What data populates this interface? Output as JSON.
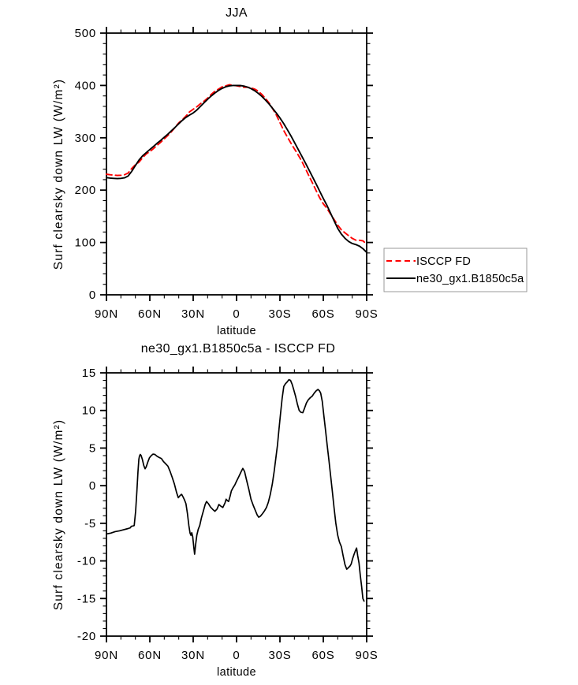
{
  "figure": {
    "background": "#ffffff",
    "line_colors": {
      "isccp": "#ff0000",
      "model": "#000000",
      "difference": "#000000"
    },
    "legend_border_color": "#999999"
  },
  "chart_data": [
    {
      "type": "line",
      "title": "JJA",
      "xlabel": "latitude",
      "ylabel": "Surf clearsky down LW (W/m²)",
      "xlim": [
        90,
        -90
      ],
      "x_tick_values": [
        90,
        60,
        30,
        0,
        -30,
        -60,
        -90
      ],
      "x_tick_labels": [
        "90N",
        "60N",
        "30N",
        "0",
        "30S",
        "60S",
        "90S"
      ],
      "x_minor_step": 10,
      "ylim": [
        0,
        500
      ],
      "y_tick_values": [
        0,
        100,
        200,
        300,
        400,
        500
      ],
      "y_tick_labels": [
        "0",
        "100",
        "200",
        "300",
        "400",
        "500"
      ],
      "y_minor_step": 20,
      "grid": false,
      "legend": {
        "position": "outside-right",
        "entries": [
          {
            "label": "ISCCP FD",
            "color": "#ff0000",
            "dashed": true
          },
          {
            "label": "ne30_gx1.B1850c5a",
            "color": "#000000",
            "dashed": false
          }
        ]
      },
      "series": [
        {
          "name": "ISCCP FD",
          "color": "#ff0000",
          "style": "dashed",
          "lats": [
            90,
            87.5,
            85,
            82.5,
            80,
            77.5,
            75,
            72.5,
            70,
            67.5,
            65,
            62.5,
            60,
            57.5,
            55,
            52.5,
            50,
            47.5,
            45,
            42.5,
            40,
            37.5,
            35,
            32.5,
            30,
            27.5,
            25,
            22.5,
            20,
            17.5,
            15,
            12.5,
            10,
            7.5,
            5,
            2.5,
            0,
            -2.5,
            -5,
            -7.5,
            -10,
            -12.5,
            -15,
            -17.5,
            -20,
            -22.5,
            -25,
            -27.5,
            -30,
            -32.5,
            -35,
            -37.5,
            -40,
            -42.5,
            -45,
            -47.5,
            -50,
            -52.5,
            -55,
            -57.5,
            -60,
            -62.5,
            -65,
            -67.5,
            -70,
            -72.5,
            -75,
            -77.5,
            -80,
            -82.5,
            -85,
            -87.5,
            -90
          ],
          "values": [
            230.4,
            229.3,
            228.7,
            228,
            228.5,
            229.3,
            232.7,
            241.4,
            248.5,
            253.6,
            261.8,
            269.1,
            273.7,
            279.3,
            285.5,
            291.4,
            297.9,
            304.5,
            311.8,
            320,
            328.6,
            334.8,
            341.4,
            349.5,
            354.5,
            359.2,
            365,
            370.1,
            375.7,
            383,
            388.9,
            393.1,
            397.3,
            399.3,
            401.4,
            400.3,
            399.4,
            398.1,
            396.5,
            396.5,
            395.7,
            393,
            389.2,
            382.8,
            375.1,
            366.4,
            355.5,
            343.5,
            329,
            314.5,
            302.1,
            290.1,
            279,
            267.7,
            255.8,
            241.8,
            227.4,
            213.5,
            199.4,
            185.4,
            174,
            165.2,
            154.2,
            143.5,
            133.2,
            124.1,
            118.3,
            112.9,
            107.9,
            104.4,
            104.2,
            103,
            96.4
          ]
        },
        {
          "name": "ne30_gx1.B1850c5a",
          "color": "#000000",
          "style": "solid",
          "lats": [
            90,
            87.5,
            85,
            82.5,
            80,
            77.5,
            75,
            72.5,
            70,
            67.5,
            65,
            62.5,
            60,
            57.5,
            55,
            52.5,
            50,
            47.5,
            45,
            42.5,
            40,
            37.5,
            35,
            32.5,
            30,
            27.5,
            25,
            22.5,
            20,
            17.5,
            15,
            12.5,
            10,
            7.5,
            5,
            2.5,
            0,
            -2.5,
            -5,
            -7.5,
            -10,
            -12.5,
            -15,
            -17.5,
            -20,
            -22.5,
            -25,
            -27.5,
            -30,
            -32.5,
            -35,
            -37.5,
            -40,
            -42.5,
            -45,
            -47.5,
            -50,
            -52.5,
            -55,
            -57.5,
            -60,
            -62.5,
            -65,
            -67.5,
            -70,
            -72.5,
            -75,
            -77.5,
            -80,
            -82.5,
            -85,
            -87.5,
            -90
          ],
          "values": [
            224,
            223,
            222.5,
            222,
            222.5,
            223.5,
            227,
            236,
            247,
            257.5,
            265.5,
            271.5,
            277.5,
            283.5,
            289.5,
            295,
            301,
            307,
            313.5,
            320,
            327,
            333.5,
            339,
            343.5,
            347.5,
            353,
            360,
            367,
            373.5,
            380,
            385.5,
            390.5,
            394.5,
            397.5,
            399.3,
            400,
            400,
            399.8,
            398.8,
            396.8,
            394,
            390,
            385,
            379,
            372,
            364.5,
            356,
            347.5,
            338,
            327.5,
            316,
            304,
            291.5,
            278.5,
            265.5,
            252.5,
            239,
            225.5,
            212,
            198,
            184,
            171,
            156,
            141,
            127,
            116,
            108,
            102,
            98,
            96,
            93,
            88,
            81
          ]
        }
      ]
    },
    {
      "type": "line",
      "title": "ne30_gx1.B1850c5a - ISCCP FD",
      "xlabel": "latitude",
      "ylabel": "Surf clearsky down LW (W/m²)",
      "xlim": [
        90,
        -90
      ],
      "x_tick_values": [
        90,
        60,
        30,
        0,
        -30,
        -60,
        -90
      ],
      "x_tick_labels": [
        "90N",
        "60N",
        "30N",
        "0",
        "30S",
        "60S",
        "90S"
      ],
      "x_minor_step": 10,
      "ylim": [
        -20,
        15
      ],
      "y_tick_values": [
        -20,
        -15,
        -10,
        -5,
        0,
        5,
        10,
        15
      ],
      "y_tick_labels": [
        "-20",
        "-15",
        "-10",
        "-5",
        "0",
        "5",
        "10",
        "15"
      ],
      "y_minor_step": 1,
      "grid": false,
      "legend": null,
      "series": [
        {
          "name": "ne30_gx1.B1850c5a - ISCCP FD",
          "color": "#000000",
          "style": "solid",
          "lats": [
            89.5,
            87,
            84,
            81,
            79,
            77,
            75,
            73.5,
            72.8,
            71.5,
            70.8,
            69.8,
            69,
            68.2,
            67.6,
            67.2,
            66.6,
            66,
            65.2,
            64.2,
            63.3,
            62.5,
            61.5,
            60.3,
            59,
            57.8,
            56.5,
            55,
            53.5,
            52,
            50.5,
            49,
            47.5,
            46,
            44.5,
            43,
            41.5,
            40.3,
            39,
            38,
            37,
            36,
            35,
            34,
            33,
            32.2,
            31.6,
            31,
            30.3,
            29.5,
            29,
            28.3,
            27.5,
            26.5,
            25.5,
            24.3,
            23,
            21.7,
            20.8,
            19.5,
            18,
            16.5,
            15,
            13.5,
            12.2,
            11,
            9.5,
            8,
            7.2,
            6.3,
            5.5,
            4.5,
            3.6,
            2.5,
            1.2,
            0,
            -1.5,
            -3,
            -4.3,
            -5.5,
            -7,
            -8.5,
            -10,
            -11.5,
            -13,
            -14.3,
            -15.3,
            -16.5,
            -18,
            -19.3,
            -20.7,
            -22,
            -23.3,
            -24.7,
            -26,
            -27.3,
            -28.3,
            -29.3,
            -30.3,
            -31.5,
            -32.7,
            -33.8,
            -35,
            -36.2,
            -37.3,
            -38.4,
            -39.5,
            -40.8,
            -42,
            -43.3,
            -44.5,
            -45.8,
            -47,
            -48.3,
            -49.5,
            -51,
            -52.3,
            -53.7,
            -55,
            -56.3,
            -57.4,
            -58.2,
            -59.3,
            -60.3,
            -61.5,
            -62.7,
            -63.8,
            -65,
            -66.2,
            -67.4,
            -68.7,
            -70,
            -71.2,
            -72.5,
            -73.7,
            -75,
            -76.2,
            -77.3,
            -78.4,
            -79.3,
            -80.3,
            -81.3,
            -82.3,
            -83,
            -83.8,
            -84.7,
            -85.6,
            -86.5,
            -87.4,
            -88.2
          ],
          "values": [
            -6.4,
            -6.3,
            -6.1,
            -6.0,
            -5.9,
            -5.8,
            -5.7,
            -5.6,
            -5.4,
            -5.35,
            -5.3,
            -3.4,
            -0.9,
            1.9,
            3.5,
            3.9,
            4.15,
            4.0,
            3.5,
            2.7,
            2.25,
            2.5,
            3.1,
            3.7,
            4.0,
            4.2,
            4.15,
            3.9,
            3.75,
            3.6,
            3.2,
            2.9,
            2.6,
            1.9,
            1.1,
            0.2,
            -0.9,
            -1.6,
            -1.3,
            -1.15,
            -1.5,
            -1.9,
            -2.4,
            -3.7,
            -5.3,
            -6.3,
            -6.6,
            -6.25,
            -6.8,
            -8.3,
            -9.1,
            -7.8,
            -6.6,
            -5.8,
            -5.3,
            -4.3,
            -3.4,
            -2.5,
            -2.1,
            -2.4,
            -2.85,
            -3.15,
            -3.4,
            -3.1,
            -2.5,
            -2.7,
            -2.9,
            -2.3,
            -1.8,
            -2.0,
            -2.1,
            -1.4,
            -0.7,
            -0.3,
            0.1,
            0.6,
            1.2,
            1.8,
            2.3,
            1.9,
            0.7,
            -0.5,
            -1.8,
            -2.6,
            -3.3,
            -3.9,
            -4.2,
            -4.05,
            -3.7,
            -3.35,
            -2.9,
            -2.2,
            -1.2,
            0.2,
            1.9,
            3.9,
            5.4,
            7.4,
            9.4,
            11.6,
            13.2,
            13.55,
            13.8,
            14.1,
            14.0,
            13.5,
            12.8,
            11.9,
            10.9,
            10.0,
            9.75,
            9.7,
            10.3,
            11.0,
            11.4,
            11.7,
            11.9,
            12.3,
            12.6,
            12.8,
            12.6,
            12.3,
            11.2,
            9.4,
            7.4,
            5.4,
            3.5,
            1.4,
            -0.7,
            -2.9,
            -5.0,
            -6.6,
            -7.5,
            -8.1,
            -9.3,
            -10.5,
            -11.1,
            -10.9,
            -10.7,
            -10.4,
            -9.7,
            -9.1,
            -8.6,
            -8.3,
            -9.3,
            -10.3,
            -11.9,
            -13.4,
            -15.0,
            -15.35
          ]
        }
      ]
    }
  ]
}
